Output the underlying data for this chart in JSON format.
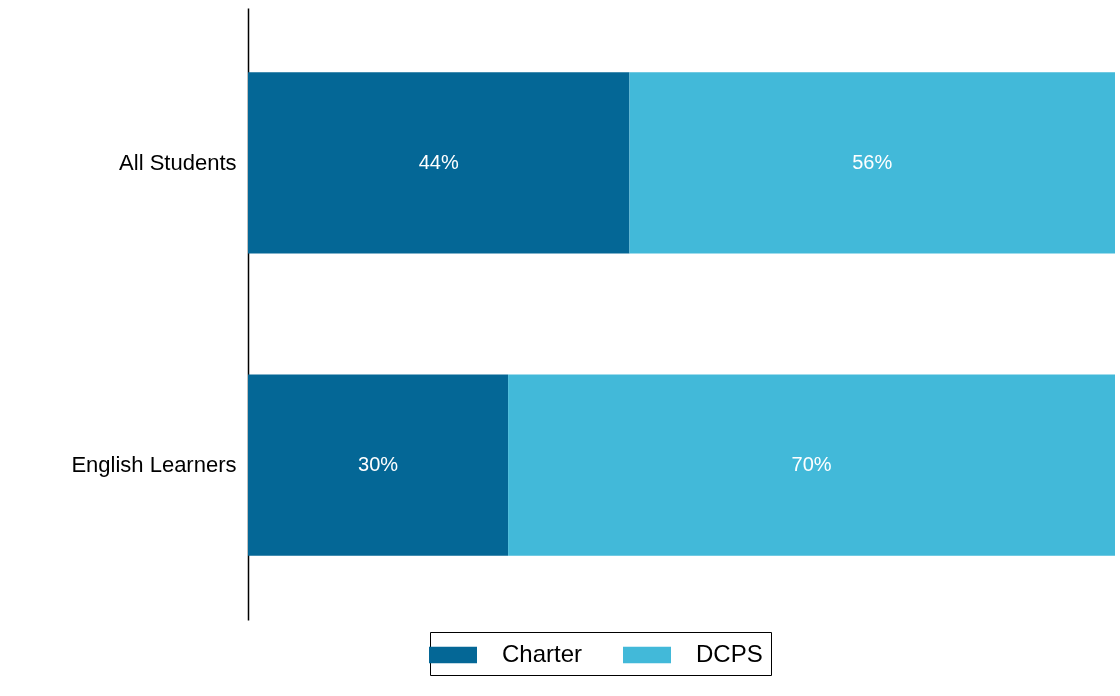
{
  "chart_data": {
    "type": "bar",
    "orientation": "horizontal",
    "stacked": true,
    "categories": [
      "All Students",
      "English Learners"
    ],
    "xlim": [
      0,
      100
    ],
    "series": [
      {
        "name": "Charter",
        "color": "#046796",
        "values": [
          44,
          30
        ],
        "value_labels": [
          "44%",
          "30%"
        ]
      },
      {
        "name": "DCPS",
        "color": "#42b9d9",
        "values": [
          56,
          70
        ],
        "value_labels": [
          "56%",
          "70%"
        ]
      }
    ],
    "legend": "bottom",
    "tick_labels": "y"
  }
}
